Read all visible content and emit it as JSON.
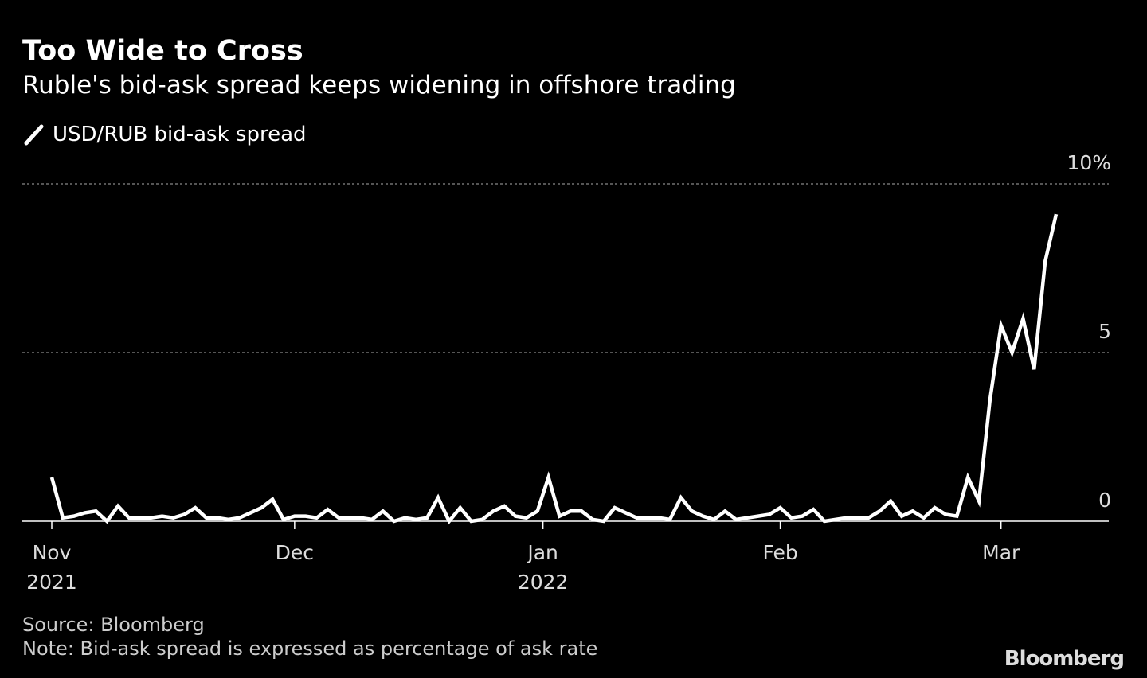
{
  "chart_data": {
    "type": "line",
    "title": "Too Wide to Cross",
    "subtitle": "Ruble's bid-ask spread keeps widening in offshore trading",
    "series": [
      {
        "name": "USD/RUB bid-ask spread",
        "color": "#ffffff",
        "values": [
          1.3,
          0.1,
          0.15,
          0.25,
          0.3,
          0.0,
          0.45,
          0.1,
          0.1,
          0.1,
          0.15,
          0.1,
          0.2,
          0.4,
          0.1,
          0.1,
          0.05,
          0.1,
          0.25,
          0.4,
          0.65,
          0.05,
          0.15,
          0.15,
          0.1,
          0.35,
          0.1,
          0.1,
          0.1,
          0.05,
          0.3,
          0.0,
          0.1,
          0.05,
          0.1,
          0.7,
          0.0,
          0.4,
          0.0,
          0.05,
          0.3,
          0.45,
          0.15,
          0.1,
          0.3,
          1.3,
          0.15,
          0.3,
          0.3,
          0.05,
          0.0,
          0.4,
          0.25,
          0.1,
          0.1,
          0.1,
          0.05,
          0.7,
          0.3,
          0.15,
          0.05,
          0.3,
          0.05,
          0.1,
          0.15,
          0.2,
          0.4,
          0.1,
          0.15,
          0.35,
          0.0,
          0.05,
          0.1,
          0.1,
          0.1,
          0.3,
          0.6,
          0.15,
          0.3,
          0.1,
          0.4,
          0.2,
          0.15,
          1.3,
          0.6,
          3.6,
          5.8,
          5.0,
          6.0,
          4.5,
          7.7,
          9.1
        ]
      }
    ],
    "xlim": [
      0,
      91
    ],
    "xticks": [
      {
        "value": 0,
        "label": "Nov",
        "year": "2021"
      },
      {
        "value": 22,
        "label": "Dec"
      },
      {
        "value": 44.5,
        "label": "Jan",
        "year": "2022"
      },
      {
        "value": 66,
        "label": "Feb"
      },
      {
        "value": 86,
        "label": "Mar"
      }
    ],
    "ylim": [
      0,
      10
    ],
    "yticks": [
      0,
      5,
      {
        "value": 10,
        "label": "10%"
      }
    ],
    "grid": true,
    "source": "Source: Bloomberg",
    "note": "Note: Bid-ask spread is expressed as percentage of ask rate",
    "brand": "Bloomberg"
  }
}
